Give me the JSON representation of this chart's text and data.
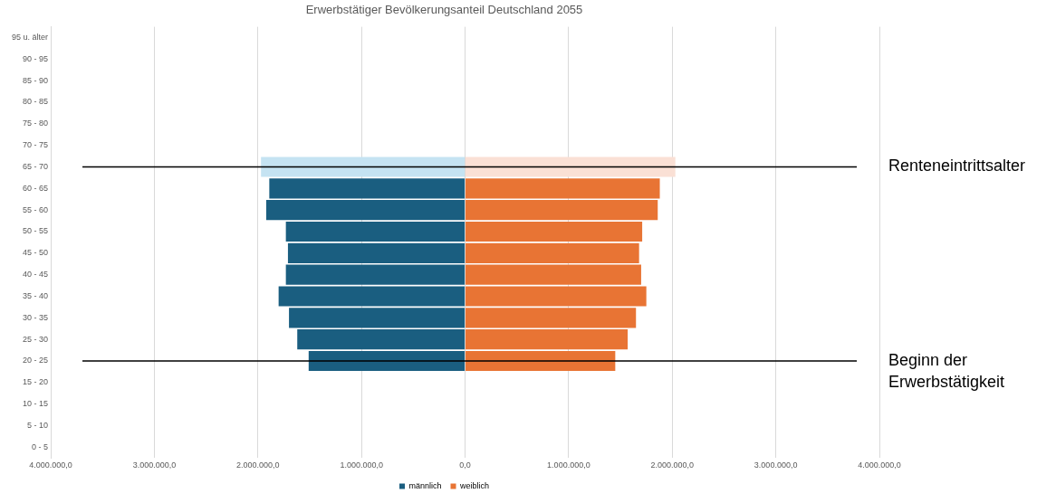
{
  "chart_data": {
    "type": "bar",
    "orientation": "horizontal",
    "stacked": true,
    "title": "Erwerbstätiger Bevölkerungsanteil Deutschland 2055",
    "categories": [
      "95 u. älter",
      "90 - 95",
      "85 - 90",
      "80 - 85",
      "75 - 80",
      "70 - 75",
      "65 - 70",
      "60 - 65",
      "55 - 60",
      "50 - 55",
      "45 - 50",
      "40 - 45",
      "35 - 40",
      "30 - 35",
      "25 - 30",
      "20 - 25",
      "15 - 20",
      "10 - 15",
      "5 - 10",
      "0 - 5"
    ],
    "series": [
      {
        "name": "männlich",
        "color": "#1a5e80",
        "colors": [
          "#1a5e80",
          "#1a5e80",
          "#1a5e80",
          "#1a5e80",
          "#1a5e80",
          "#1a5e80",
          "#c5e3f2",
          "#1a5e80",
          "#1a5e80",
          "#1a5e80",
          "#1a5e80",
          "#1a5e80",
          "#1a5e80",
          "#1a5e80",
          "#1a5e80",
          "#1a5e80",
          "#1a5e80",
          "#1a5e80",
          "#1a5e80",
          "#1a5e80"
        ],
        "values": [
          null,
          null,
          null,
          null,
          null,
          null,
          -1970000,
          -1890000,
          -1920000,
          -1730000,
          -1710000,
          -1730000,
          -1800000,
          -1700000,
          -1620000,
          -1510000,
          null,
          null,
          null,
          null
        ]
      },
      {
        "name": "weiblich",
        "color": "#e87434",
        "colors": [
          "#e87434",
          "#e87434",
          "#e87434",
          "#e87434",
          "#e87434",
          "#e87434",
          "#fae0d5",
          "#e87434",
          "#e87434",
          "#e87434",
          "#e87434",
          "#e87434",
          "#e87434",
          "#e87434",
          "#e87434",
          "#e87434",
          "#e87434",
          "#e87434",
          "#e87434",
          "#e87434"
        ],
        "values": [
          null,
          null,
          null,
          null,
          null,
          null,
          2030000,
          1880000,
          1860000,
          1710000,
          1680000,
          1700000,
          1750000,
          1650000,
          1570000,
          1450000,
          null,
          null,
          null,
          null
        ]
      }
    ],
    "xlim": [
      -4000000,
      4000000
    ],
    "xticks": [
      {
        "value": -4000000,
        "label": "4.000.000,0"
      },
      {
        "value": -3000000,
        "label": "3.000.000,0"
      },
      {
        "value": -2000000,
        "label": "2.000.000,0"
      },
      {
        "value": -1000000,
        "label": "1.000.000,0"
      },
      {
        "value": 0,
        "label": "0,0"
      },
      {
        "value": 1000000,
        "label": "1.000.000,0"
      },
      {
        "value": 2000000,
        "label": "2.000.000,0"
      },
      {
        "value": 3000000,
        "label": "3.000.000,0"
      },
      {
        "value": 4000000,
        "label": "4.000.000,0"
      }
    ],
    "ref_lines": [
      {
        "axis": "y",
        "value": "65 - 70",
        "label": "Renteneintrittsalter",
        "color": "#000000"
      },
      {
        "axis": "y",
        "value": "20 - 25",
        "label": "Beginn der Erwerbstätigkeit",
        "color": "#000000"
      }
    ],
    "grid": "x",
    "legend": "bottom"
  }
}
